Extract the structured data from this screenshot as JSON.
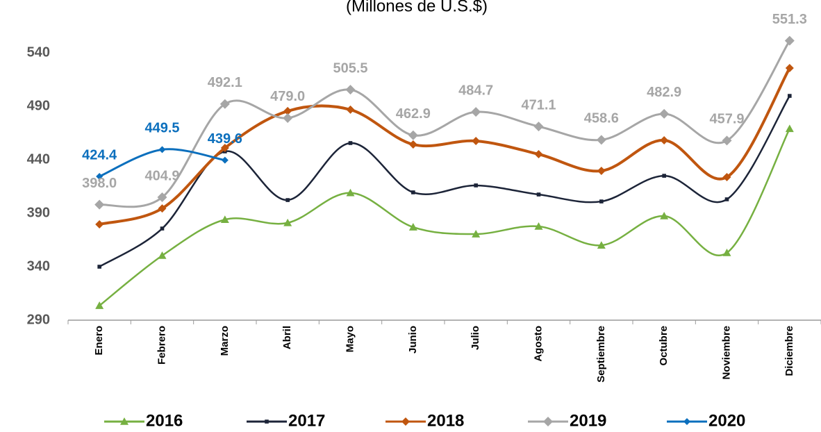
{
  "chart_data": {
    "type": "line",
    "subtitle": "(Millones de U.S.$)",
    "categories": [
      "Enero",
      "Febrero",
      "Marzo",
      "Abril",
      "Mayo",
      "Junio",
      "Julio",
      "Agosto",
      "Septiembre",
      "Octubre",
      "Noviembre",
      "Diciembre"
    ],
    "ylim": [
      290,
      540
    ],
    "yticks": [
      290,
      340,
      390,
      440,
      490,
      540
    ],
    "legend": "bottom",
    "series": [
      {
        "name": "2016",
        "color": "#76b041",
        "marker": "triangle",
        "values": [
          303.6,
          350.4,
          384,
          381,
          409,
          377,
          370.5,
          377.7,
          360,
          387.4,
          353,
          469
        ]
      },
      {
        "name": "2017",
        "color": "#1c2438",
        "marker": "square",
        "values": [
          340,
          375.7,
          447.8,
          402.3,
          455.6,
          409.5,
          416,
          407.5,
          401,
          425,
          403,
          499.7
        ]
      },
      {
        "name": "2018",
        "color": "#c0560f",
        "marker": "diamond",
        "values": [
          379.6,
          394.5,
          451,
          485.5,
          486.8,
          454.3,
          457.5,
          445.2,
          429.6,
          458.2,
          423.8,
          525.7
        ]
      },
      {
        "name": "2019",
        "color": "#a6a6a6",
        "marker": "diamond",
        "values": [
          398.0,
          404.9,
          492.1,
          479.0,
          505.5,
          462.9,
          484.7,
          471.1,
          458.6,
          482.9,
          457.9,
          551.3
        ],
        "value_labels": [
          "398.0",
          "404.9",
          "492.1",
          "479.0",
          "505.5",
          "462.9",
          "484.7",
          "471.1",
          "458.6",
          "482.9",
          "457.9",
          "551.3"
        ]
      },
      {
        "name": "2020",
        "color": "#0b6fbd",
        "marker": "diamond",
        "values": [
          424.4,
          449.5,
          439.6,
          null,
          null,
          null,
          null,
          null,
          null,
          null,
          null,
          null
        ],
        "value_labels": [
          "424.4",
          "449.5",
          "439.6",
          null,
          null,
          null,
          null,
          null,
          null,
          null,
          null,
          null
        ]
      }
    ]
  }
}
